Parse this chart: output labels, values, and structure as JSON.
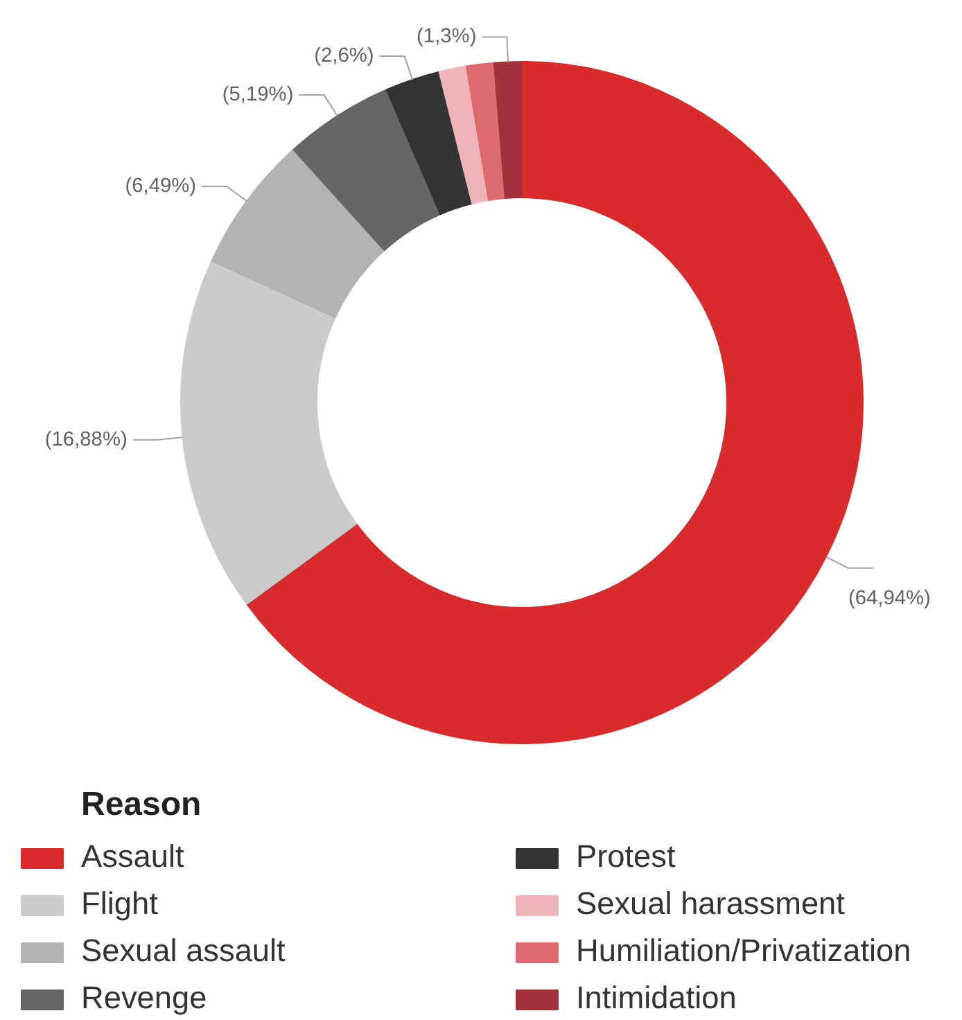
{
  "chart_data": {
    "type": "donut",
    "legend_title": "Reason",
    "legend": "bottom",
    "categories": [
      "Assault",
      "Flight",
      "Sexual assault",
      "Revenge",
      "Protest",
      "Sexual harassment",
      "Humiliation/Privatization",
      "Intimidation"
    ],
    "values": [
      64.94,
      16.88,
      6.49,
      5.19,
      2.6,
      1.3,
      1.3,
      1.3
    ],
    "colors": [
      "#d92b2b",
      "#cbcbcb",
      "#b3b3b3",
      "#666666",
      "#333333",
      "#efb4b8",
      "#df6a70",
      "#a3303a"
    ],
    "value_labels": [
      "(64,94%)",
      "(16,88%)",
      "(6,49%)",
      "(5,19%)",
      "(2,6%)",
      null,
      null,
      "(1,3%)"
    ]
  }
}
